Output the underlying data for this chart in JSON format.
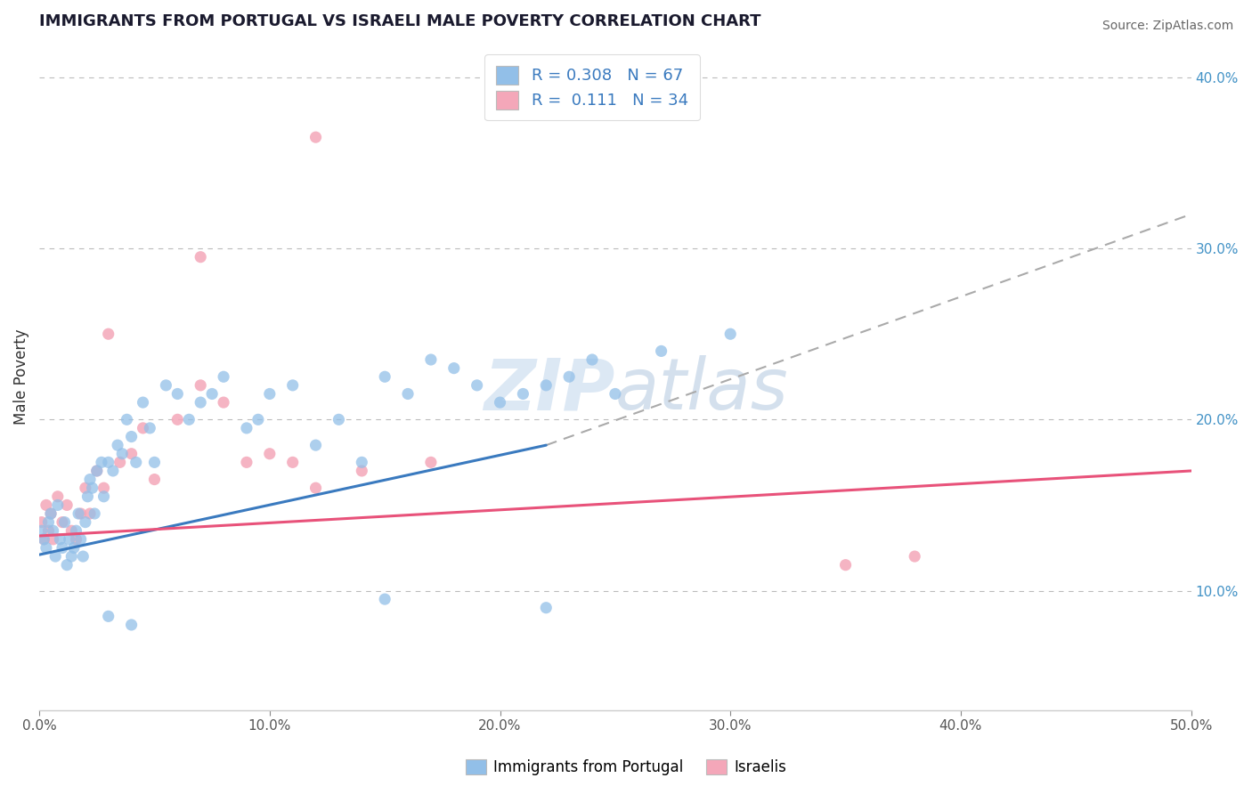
{
  "title": "IMMIGRANTS FROM PORTUGAL VS ISRAELI MALE POVERTY CORRELATION CHART",
  "source": "Source: ZipAtlas.com",
  "ylabel": "Male Poverty",
  "xlim": [
    0.0,
    0.5
  ],
  "ylim": [
    0.03,
    0.42
  ],
  "x_ticks": [
    0.0,
    0.1,
    0.2,
    0.3,
    0.4,
    0.5
  ],
  "x_tick_labels": [
    "0.0%",
    "10.0%",
    "20.0%",
    "30.0%",
    "40.0%",
    "50.0%"
  ],
  "y_ticks": [
    0.1,
    0.2,
    0.3,
    0.4
  ],
  "y_tick_labels": [
    "10.0%",
    "20.0%",
    "30.0%",
    "40.0%"
  ],
  "legend_entry1": "R = 0.308   N = 67",
  "legend_entry2": "R =  0.111   N = 34",
  "legend_label1": "Immigrants from Portugal",
  "legend_label2": "Israelis",
  "blue_color": "#92bfe8",
  "pink_color": "#f4a7b9",
  "blue_line_color": "#3a7abf",
  "pink_line_color": "#e8527a",
  "dash_color": "#aaaaaa",
  "watermark_color": "#c5d9ee",
  "title_color": "#1a1a2e",
  "right_tick_color": "#4292c6",
  "blue_line_x_end": 0.22,
  "blue_scatter_x": [
    0.001,
    0.002,
    0.003,
    0.004,
    0.005,
    0.006,
    0.007,
    0.008,
    0.009,
    0.01,
    0.011,
    0.012,
    0.013,
    0.014,
    0.015,
    0.016,
    0.017,
    0.018,
    0.019,
    0.02,
    0.021,
    0.022,
    0.023,
    0.024,
    0.025,
    0.027,
    0.028,
    0.03,
    0.032,
    0.034,
    0.036,
    0.038,
    0.04,
    0.042,
    0.045,
    0.048,
    0.05,
    0.055,
    0.06,
    0.065,
    0.07,
    0.075,
    0.08,
    0.09,
    0.095,
    0.1,
    0.11,
    0.12,
    0.13,
    0.14,
    0.15,
    0.16,
    0.17,
    0.18,
    0.19,
    0.2,
    0.21,
    0.22,
    0.23,
    0.24,
    0.25,
    0.27,
    0.3,
    0.22,
    0.15,
    0.04,
    0.03
  ],
  "blue_scatter_y": [
    0.135,
    0.13,
    0.125,
    0.14,
    0.145,
    0.135,
    0.12,
    0.15,
    0.13,
    0.125,
    0.14,
    0.115,
    0.13,
    0.12,
    0.125,
    0.135,
    0.145,
    0.13,
    0.12,
    0.14,
    0.155,
    0.165,
    0.16,
    0.145,
    0.17,
    0.175,
    0.155,
    0.175,
    0.17,
    0.185,
    0.18,
    0.2,
    0.19,
    0.175,
    0.21,
    0.195,
    0.175,
    0.22,
    0.215,
    0.2,
    0.21,
    0.215,
    0.225,
    0.195,
    0.2,
    0.215,
    0.22,
    0.185,
    0.2,
    0.175,
    0.225,
    0.215,
    0.235,
    0.23,
    0.22,
    0.21,
    0.215,
    0.22,
    0.225,
    0.235,
    0.215,
    0.24,
    0.25,
    0.09,
    0.095,
    0.08,
    0.085
  ],
  "pink_scatter_x": [
    0.001,
    0.002,
    0.003,
    0.004,
    0.005,
    0.006,
    0.008,
    0.01,
    0.012,
    0.014,
    0.016,
    0.018,
    0.02,
    0.022,
    0.025,
    0.028,
    0.03,
    0.035,
    0.04,
    0.045,
    0.05,
    0.06,
    0.07,
    0.08,
    0.09,
    0.1,
    0.11,
    0.12,
    0.14,
    0.17,
    0.35,
    0.38,
    0.07,
    0.12
  ],
  "pink_scatter_y": [
    0.14,
    0.13,
    0.15,
    0.135,
    0.145,
    0.13,
    0.155,
    0.14,
    0.15,
    0.135,
    0.13,
    0.145,
    0.16,
    0.145,
    0.17,
    0.16,
    0.25,
    0.175,
    0.18,
    0.195,
    0.165,
    0.2,
    0.22,
    0.21,
    0.175,
    0.18,
    0.175,
    0.365,
    0.17,
    0.175,
    0.115,
    0.12,
    0.295,
    0.16
  ],
  "blue_line": [
    0.0,
    0.22,
    0.121,
    0.185
  ],
  "pink_line": [
    0.0,
    0.5,
    0.132,
    0.17
  ],
  "dash_line": [
    0.22,
    0.5,
    0.185,
    0.32
  ]
}
